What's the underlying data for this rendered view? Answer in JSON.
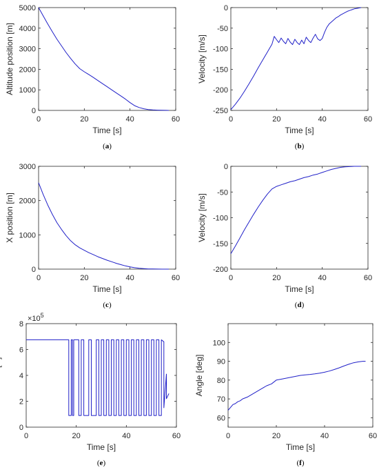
{
  "figure": {
    "line_color": "#1f1fc8",
    "axis_color": "#262626"
  },
  "chart_data": [
    {
      "id": "a",
      "type": "line",
      "caption": "a",
      "xlabel": "Time [s]",
      "ylabel": "Altitude position [m]",
      "xlim": [
        0,
        60
      ],
      "ylim": [
        0,
        5000
      ],
      "xticks": [
        0,
        20,
        40,
        60
      ],
      "yticks": [
        0,
        1000,
        2000,
        3000,
        4000,
        5000
      ],
      "grid": false,
      "series": [
        {
          "x": [
            0,
            2,
            4,
            6,
            8,
            10,
            12,
            14,
            16,
            18,
            20,
            22,
            24,
            26,
            28,
            30,
            32,
            34,
            36,
            38,
            40,
            42,
            44,
            46,
            48,
            50,
            52,
            54,
            56,
            57
          ],
          "y": [
            5000,
            4600,
            4200,
            3830,
            3470,
            3140,
            2820,
            2530,
            2260,
            2030,
            1880,
            1740,
            1600,
            1450,
            1300,
            1150,
            1000,
            850,
            700,
            550,
            380,
            230,
            140,
            80,
            45,
            25,
            12,
            6,
            2,
            0
          ]
        }
      ]
    },
    {
      "id": "b",
      "type": "line",
      "caption": "b",
      "xlabel": "Time [s]",
      "ylabel": "Velocity [m/s]",
      "xlim": [
        0,
        60
      ],
      "ylim": [
        -250,
        0
      ],
      "xticks": [
        0,
        20,
        40,
        60
      ],
      "yticks": [
        -250,
        -200,
        -150,
        -100,
        -50,
        0
      ],
      "grid": false,
      "series": [
        {
          "x": [
            0,
            2,
            4,
            6,
            8,
            10,
            12,
            14,
            16,
            18,
            19,
            20,
            21,
            22,
            23,
            24,
            25,
            26,
            27,
            28,
            29,
            30,
            31,
            32,
            33,
            34,
            35,
            36,
            37,
            38,
            39,
            40,
            41,
            42,
            43,
            44,
            45,
            46,
            47,
            48,
            49,
            50,
            51,
            52,
            53,
            54,
            55,
            56,
            57
          ],
          "y": [
            -248,
            -235,
            -220,
            -203,
            -185,
            -166,
            -146,
            -127,
            -108,
            -89,
            -70,
            -78,
            -85,
            -74,
            -82,
            -88,
            -75,
            -84,
            -90,
            -77,
            -85,
            -90,
            -79,
            -88,
            -72,
            -80,
            -85,
            -74,
            -65,
            -76,
            -80,
            -75,
            -60,
            -48,
            -40,
            -35,
            -30,
            -25,
            -22,
            -18,
            -15,
            -12,
            -9,
            -7,
            -5,
            -3,
            -2,
            -1,
            0
          ]
        }
      ]
    },
    {
      "id": "c",
      "type": "line",
      "caption": "c",
      "xlabel": "Time [s]",
      "ylabel": "X position [m]",
      "xlim": [
        0,
        60
      ],
      "ylim": [
        0,
        3000
      ],
      "xticks": [
        0,
        20,
        40,
        60
      ],
      "yticks": [
        0,
        1000,
        2000,
        3000
      ],
      "grid": false,
      "series": [
        {
          "x": [
            0,
            2,
            4,
            6,
            8,
            10,
            12,
            14,
            16,
            18,
            20,
            22,
            24,
            26,
            28,
            30,
            32,
            34,
            36,
            38,
            40,
            42,
            44,
            46,
            48,
            50,
            52,
            54,
            56,
            57
          ],
          "y": [
            2520,
            2180,
            1870,
            1600,
            1360,
            1160,
            980,
            830,
            710,
            620,
            550,
            480,
            420,
            360,
            310,
            260,
            215,
            170,
            130,
            95,
            65,
            42,
            25,
            14,
            7,
            4,
            2,
            1,
            0,
            0
          ]
        }
      ]
    },
    {
      "id": "d",
      "type": "line",
      "caption": "d",
      "xlabel": "Time [s]",
      "ylabel": "Velocity [m/s]",
      "xlim": [
        0,
        60
      ],
      "ylim": [
        -200,
        0
      ],
      "xticks": [
        0,
        20,
        40,
        60
      ],
      "yticks": [
        -200,
        -150,
        -100,
        -50,
        0
      ],
      "grid": false,
      "series": [
        {
          "x": [
            0,
            2,
            4,
            6,
            8,
            10,
            12,
            14,
            16,
            18,
            20,
            22,
            24,
            26,
            28,
            30,
            32,
            34,
            36,
            38,
            40,
            42,
            44,
            46,
            48,
            50,
            52,
            54,
            56,
            57
          ],
          "y": [
            -170,
            -155,
            -139,
            -123,
            -108,
            -93,
            -79,
            -66,
            -54,
            -44,
            -39,
            -36,
            -33,
            -30,
            -28,
            -25,
            -22,
            -20,
            -17,
            -15,
            -12,
            -9,
            -6,
            -4,
            -2,
            -1,
            -0.5,
            0,
            0,
            0
          ]
        }
      ]
    },
    {
      "id": "e",
      "type": "line",
      "caption": "e",
      "xlabel": "Time [s]",
      "ylabel": "Thrust [N]",
      "y_exponent": "5",
      "xlim": [
        0,
        60
      ],
      "ylim": [
        0,
        8
      ],
      "xticks": [
        0,
        20,
        40,
        60
      ],
      "yticks": [
        0,
        2,
        4,
        6,
        8
      ],
      "grid": false,
      "series": [
        {
          "x": [
            0,
            17,
            17,
            18,
            18,
            18.5,
            18.5,
            19,
            19,
            21,
            21,
            22,
            22,
            23,
            23,
            25,
            25,
            26,
            26,
            28,
            28,
            29,
            29,
            30,
            30,
            31,
            31,
            32,
            32,
            33,
            33,
            34,
            34,
            35,
            35,
            36,
            36,
            37,
            37,
            38,
            38,
            39,
            39,
            40,
            40,
            41,
            41,
            42,
            42,
            43,
            43,
            44,
            44,
            45,
            45,
            46,
            46,
            47,
            47,
            48,
            48,
            49,
            49,
            50,
            50,
            51,
            51,
            52,
            52,
            53,
            53,
            54,
            54,
            55,
            55,
            56,
            56,
            57
          ],
          "y": [
            6.75,
            6.75,
            0.9,
            0.9,
            6.75,
            6.75,
            0.9,
            0.9,
            6.75,
            6.75,
            0.9,
            0.9,
            6.75,
            6.75,
            0.9,
            0.9,
            6.75,
            6.75,
            0.9,
            0.9,
            6.75,
            6.75,
            0.9,
            0.9,
            6.75,
            6.75,
            0.9,
            0.9,
            6.75,
            6.75,
            0.9,
            0.9,
            6.75,
            6.75,
            0.9,
            0.9,
            6.75,
            6.75,
            0.9,
            0.9,
            6.75,
            6.75,
            0.9,
            0.9,
            6.75,
            6.75,
            0.9,
            0.9,
            6.75,
            6.75,
            0.9,
            0.9,
            6.75,
            6.75,
            0.9,
            0.9,
            6.75,
            6.75,
            0.9,
            0.9,
            6.75,
            6.75,
            0.9,
            0.9,
            6.75,
            6.75,
            0.9,
            0.9,
            6.75,
            6.75,
            0.9,
            0.9,
            6.75,
            6.6,
            1.5,
            4.1,
            2.2,
            2.6
          ]
        }
      ]
    },
    {
      "id": "f",
      "type": "line",
      "caption": "f",
      "xlabel": "Time [s]",
      "ylabel": "Angle [deg]",
      "xlim": [
        0,
        60
      ],
      "ylim": [
        55,
        110
      ],
      "xticks": [
        0,
        20,
        40,
        60
      ],
      "yticks": [
        60,
        70,
        80,
        90,
        100
      ],
      "grid": false,
      "series": [
        {
          "x": [
            0,
            1,
            2,
            3,
            4,
            5,
            6,
            8,
            10,
            12,
            14,
            16,
            18,
            20,
            22,
            24,
            26,
            28,
            30,
            32,
            34,
            36,
            38,
            40,
            42,
            44,
            46,
            48,
            50,
            52,
            54,
            56,
            57
          ],
          "y": [
            64,
            65.5,
            67,
            67.5,
            68.5,
            69,
            70,
            71,
            72.5,
            74,
            75.5,
            77,
            78,
            80,
            80.5,
            81,
            81.5,
            82,
            82.5,
            82.8,
            83,
            83.3,
            83.7,
            84.2,
            84.8,
            85.6,
            86.5,
            87.5,
            88.4,
            89.2,
            89.7,
            90,
            90
          ]
        }
      ]
    }
  ]
}
